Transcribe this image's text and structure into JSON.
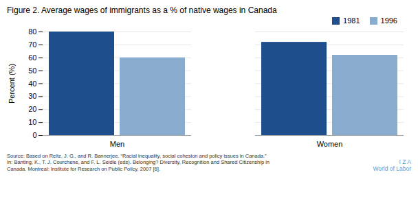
{
  "chart_data": {
    "type": "bar",
    "title": "Figure 2. Average wages of immigrants as a % of native wages in Canada",
    "categories": [
      "Men",
      "Women"
    ],
    "series": [
      {
        "name": "1981",
        "values": [
          80,
          72
        ],
        "color": "#1F4E8C"
      },
      {
        "name": "1996",
        "values": [
          60,
          62
        ],
        "color": "#8AADCF"
      }
    ],
    "ylabel": "Percent (%)",
    "ylim": [
      0,
      80
    ],
    "yticks": [
      0,
      10,
      20,
      30,
      40,
      50,
      60,
      70,
      80
    ],
    "grid": true,
    "legend": "upper right",
    "source": "Source: Based on Reitz, J. G., and R. Bannerjee. “Racial inequality, social cohesion and policy issues in Canada.”\nIn: Banting, K., T. J. Courchene, and F. L. Seidle (eds). Belonging? Diversity, Recognition and Shared Citizenship in\nCanada. Montreal: Institute for Research on Public Policy, 2007 [6].",
    "annotations": [
      "I  Z  A\nWorld of Labor"
    ]
  }
}
